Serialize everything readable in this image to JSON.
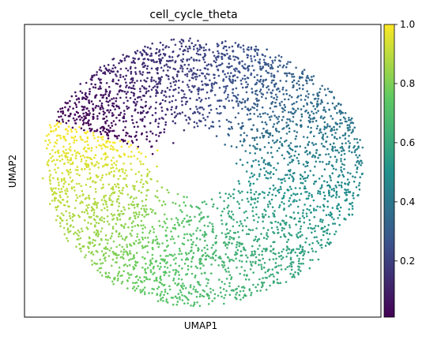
{
  "chart_data": {
    "type": "scatter",
    "title": "cell_cycle_theta",
    "xlabel": "UMAP1",
    "ylabel": "UMAP2",
    "x_ticks": [],
    "y_ticks": [],
    "grid": false,
    "colorbar": {
      "colormap": "viridis",
      "range": [
        0.01,
        1.0
      ],
      "ticks": [
        "0.2",
        "0.4",
        "0.6",
        "0.8",
        "1.0"
      ],
      "tick_values": [
        0.2,
        0.4,
        0.6,
        0.8,
        1.0
      ]
    },
    "point_color_stops": [
      "#440154",
      "#3b528b",
      "#21918c",
      "#5ec962",
      "#fde725"
    ],
    "point_count_approx": 3800,
    "structure": "Points form a ring-shaped cloud around an empty center slightly left-below middle; theta increases smoothly around the ring (dark purple lower-left, blue top-left, teal top-right, green right, yellow bottom)."
  }
}
